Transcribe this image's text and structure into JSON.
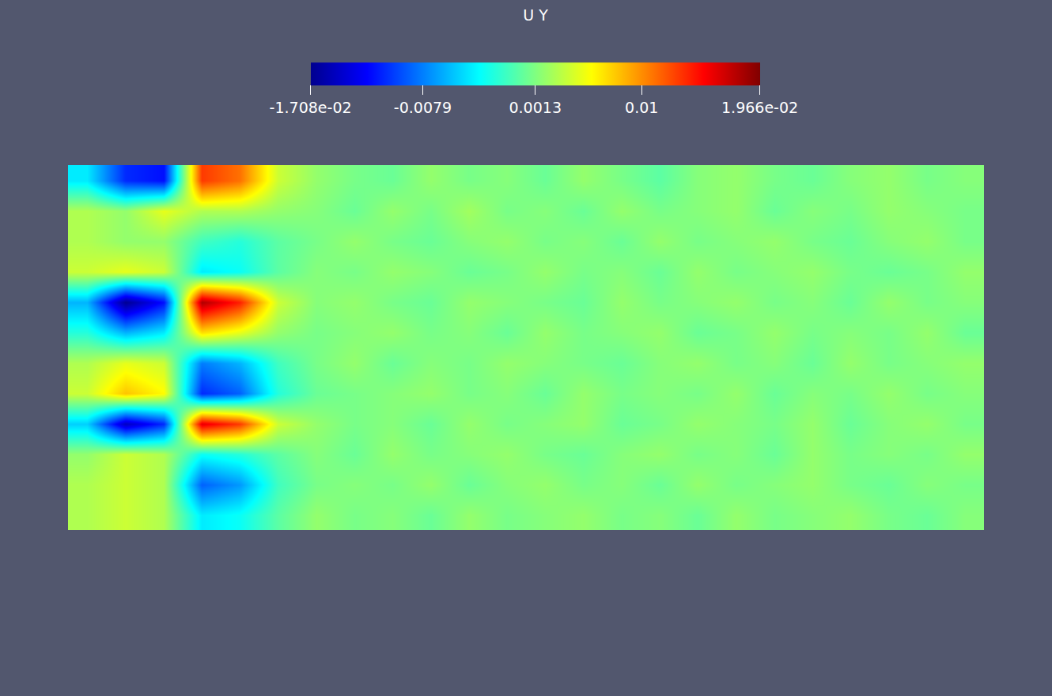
{
  "chart_data": {
    "type": "heatmap",
    "colorbar": {
      "title": "U Y",
      "range": [
        -0.01708,
        0.01966
      ],
      "ticks": [
        {
          "value": -0.01708,
          "label": "-1.708e-02"
        },
        -0.0079,
        0.0013,
        0.01,
        {
          "value": 0.01966,
          "label": "1.966e-02"
        }
      ]
    },
    "tick_labels": false,
    "cells": [
      [
        -0.004,
        -0.011,
        -0.012,
        0.013,
        0.011,
        0.004,
        0.002,
        0.001,
        0.0005,
        0.002,
        0.001,
        0.0015,
        0.0005,
        0.002,
        0.001,
        0,
        0.0015,
        0.002,
        0.001,
        0.0005,
        0.0015,
        0.002,
        0.001,
        0.0015
      ],
      [
        0.003,
        0.002,
        0.005,
        0.003,
        0.003,
        0.002,
        0.0015,
        0.0005,
        0.002,
        0.001,
        0.0025,
        0.001,
        0.0015,
        0.0005,
        0.002,
        0.001,
        0.0015,
        0.002,
        0.0005,
        0.0015,
        0.001,
        0.002,
        0.0015,
        0.001
      ],
      [
        0.003,
        0.002,
        0.002,
        -0.001,
        -0.002,
        0,
        0.001,
        0.002,
        0.001,
        0.0005,
        0.0015,
        0.002,
        0.001,
        0.0015,
        0.0005,
        0.002,
        0.001,
        0.0015,
        0.002,
        0.001,
        0.0005,
        0.0015,
        0.002,
        0.001
      ],
      [
        0.004,
        0.005,
        0.004,
        -0.004,
        -0.003,
        0,
        0.0015,
        0.001,
        0.002,
        0.0015,
        0.0005,
        0.001,
        0.002,
        0.001,
        0.0015,
        0.0005,
        0.002,
        0.001,
        0.0015,
        0.002,
        0.001,
        0.0005,
        0.001,
        0.002
      ],
      [
        -0.006,
        -0.017,
        -0.012,
        0.018,
        0.014,
        0.004,
        0.0015,
        0.002,
        0.001,
        0.0005,
        0.002,
        0.0015,
        0.001,
        0.0005,
        0.002,
        0.001,
        0.0015,
        0.002,
        0.001,
        0.0015,
        0.0005,
        0.002,
        0.001,
        0.0015
      ],
      [
        -0.002,
        -0.006,
        -0.004,
        0.007,
        0.005,
        0.002,
        0.001,
        0.0015,
        0.002,
        0.001,
        0.0015,
        0.0005,
        0.002,
        0.001,
        0.0015,
        0.002,
        0.0005,
        0.001,
        0.002,
        0.001,
        0.0015,
        0.001,
        0.002,
        0.0005
      ],
      [
        0.003,
        0.005,
        0.004,
        -0.008,
        -0.006,
        -0.001,
        0.001,
        0.002,
        0.0005,
        0.0015,
        0.001,
        0.002,
        0.0015,
        0.001,
        0.0005,
        0.0015,
        0.002,
        0.001,
        0.0015,
        0.0005,
        0.002,
        0.001,
        0.0015,
        0.002
      ],
      [
        0.004,
        0.008,
        0.006,
        -0.011,
        -0.009,
        -0.002,
        0.0005,
        0.001,
        0.0015,
        0.002,
        0.001,
        0.0015,
        0.0005,
        0.002,
        0.001,
        0.0015,
        0.001,
        0.002,
        0.0005,
        0.0015,
        0.001,
        0.002,
        0.001,
        0.0015
      ],
      [
        -0.005,
        -0.015,
        -0.011,
        0.016,
        0.013,
        0.004,
        0.002,
        0.001,
        0.0015,
        0.0005,
        0.002,
        0.001,
        0.0015,
        0.002,
        0.0005,
        0.001,
        0.002,
        0.0015,
        0.001,
        0.002,
        0.0005,
        0.0015,
        0.002,
        0.001
      ],
      [
        0.002,
        0.004,
        0.003,
        -0.003,
        -0.002,
        0,
        0.0015,
        0.0005,
        0.002,
        0.001,
        0.0015,
        0.002,
        0.001,
        0.0005,
        0.0015,
        0.002,
        0.001,
        0.0015,
        0.0005,
        0.002,
        0.001,
        0.0015,
        0.001,
        0.002
      ],
      [
        0.003,
        0.004,
        0.003,
        -0.009,
        -0.007,
        -0.001,
        0.001,
        0.0015,
        0.001,
        0.002,
        0.0005,
        0.0015,
        0.002,
        0.001,
        0.0015,
        0.0005,
        0.002,
        0.001,
        0.0015,
        0.002,
        0.001,
        0.0005,
        0.0015,
        0.001
      ],
      [
        0.003,
        0.004,
        0.003,
        -0.004,
        -0.003,
        0,
        0.002,
        0.001,
        0.0015,
        0.0005,
        0.002,
        0.001,
        0.0015,
        0.002,
        0.001,
        0.0015,
        0.0005,
        0.002,
        0.001,
        0.0015,
        0.002,
        0.001,
        0.0005,
        0.0015
      ]
    ]
  }
}
